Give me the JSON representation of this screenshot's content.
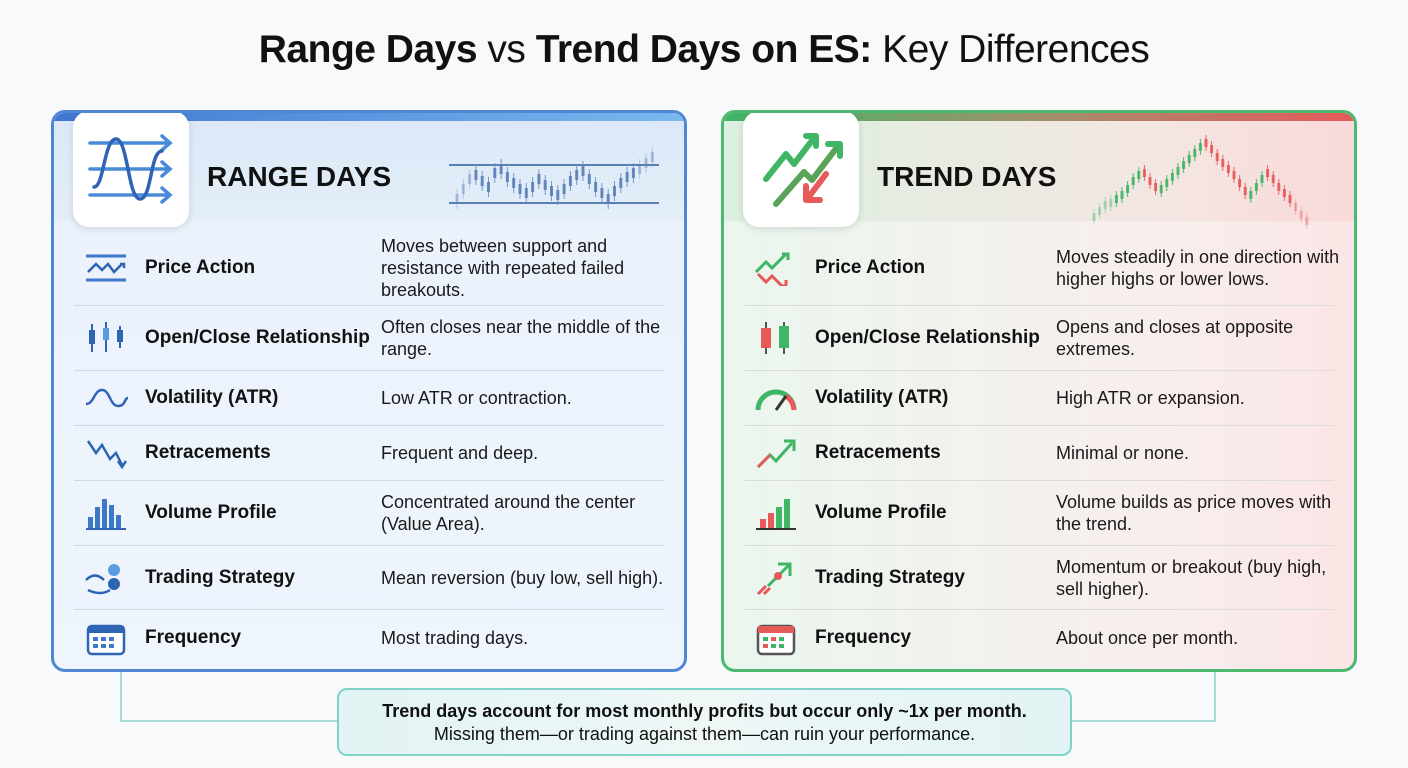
{
  "title": {
    "part1": "Range Days",
    "part2": " vs ",
    "part3": "Trend Days on ES:",
    "part4": " Key Differences"
  },
  "colors": {
    "range": "#4f86d6",
    "trend_green": "#3fb566",
    "trend_red": "#e65a5a",
    "footer": "#7fd3c8"
  },
  "range": {
    "title": "RANGE DAYS",
    "icon": "sine-wave-arrows-icon",
    "rows": [
      {
        "icon": "range-price-icon",
        "label": "Price Action",
        "desc": "Moves between support and resistance with repeated failed breakouts."
      },
      {
        "icon": "candlestick-icon",
        "label": "Open/Close Relationship",
        "desc": "Often closes near the middle of the range."
      },
      {
        "icon": "wave-icon",
        "label": "Volatility (ATR)",
        "desc": "Low ATR or contraction."
      },
      {
        "icon": "zigzag-down-icon",
        "label": "Retracements",
        "desc": "Frequent and deep."
      },
      {
        "icon": "volume-bars-icon",
        "label": "Volume Profile",
        "desc": "Concentrated around the center (Value Area)."
      },
      {
        "icon": "hand-coins-icon",
        "label": "Trading Strategy",
        "desc": "Mean reversion (buy low, sell high)."
      },
      {
        "icon": "calendar-icon",
        "label": "Frequency",
        "desc": "Most trading days."
      }
    ]
  },
  "trend": {
    "title": "TREND DAYS",
    "icon": "trend-arrows-icon",
    "rows": [
      {
        "icon": "up-down-arrows-icon",
        "label": "Price Action",
        "desc": "Moves steadily in one direction with higher highs or lower lows."
      },
      {
        "icon": "candlestick-icon",
        "label": "Open/Close Relationship",
        "desc": "Opens and closes at opposite extremes."
      },
      {
        "icon": "gauge-icon",
        "label": "Volatility (ATR)",
        "desc": "High ATR or expansion."
      },
      {
        "icon": "trend-up-arrow-icon",
        "label": "Retracements",
        "desc": "Minimal or none."
      },
      {
        "icon": "rising-bars-icon",
        "label": "Volume Profile",
        "desc": "Volume builds as price moves with the trend."
      },
      {
        "icon": "rocket-icon",
        "label": "Trading Strategy",
        "desc": "Momentum or breakout (buy high, sell higher)."
      },
      {
        "icon": "calendar-icon",
        "label": "Frequency",
        "desc": "About once per month."
      }
    ]
  },
  "footer": {
    "line1": "Trend days account for most monthly profits but occur only ~1x per month.",
    "line2": "Missing them—or trading against them—can ruin your performance."
  }
}
